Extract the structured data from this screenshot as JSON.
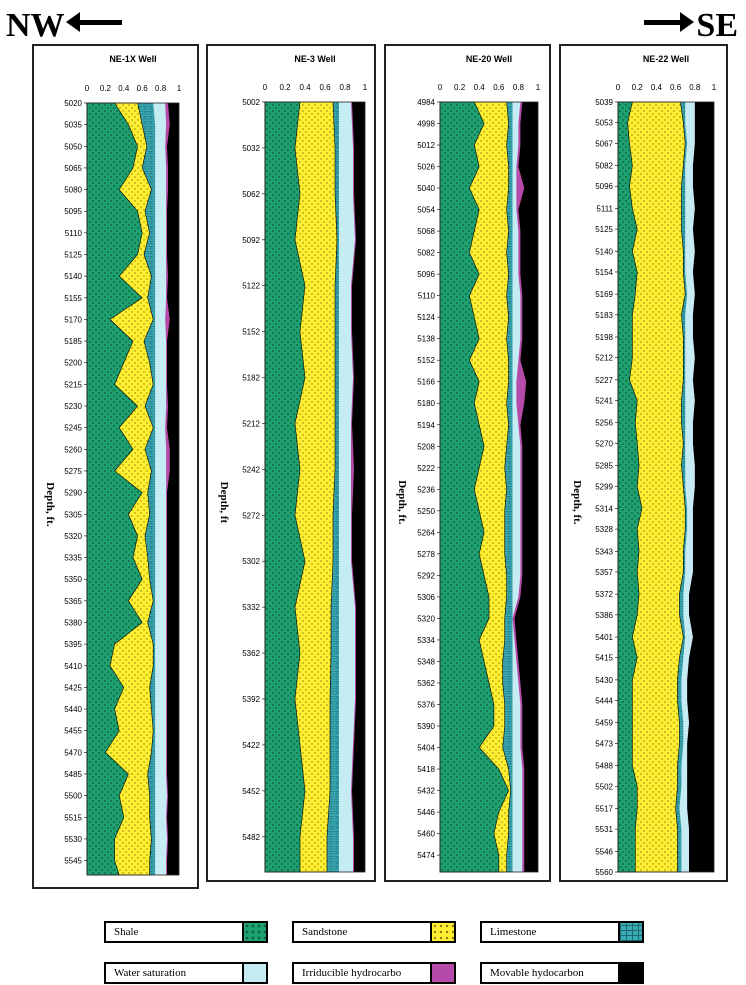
{
  "direction": {
    "left": "NW",
    "right": "SE"
  },
  "legend": [
    {
      "label": "Shale",
      "color": "#1fa070"
    },
    {
      "label": "Sandstone",
      "color": "#ffef33"
    },
    {
      "label": "Limestone",
      "color": "#3aaab5"
    },
    {
      "label": "Water saturation",
      "color": "#c5ebf3"
    },
    {
      "label": "Irriducible hydrocarbo",
      "color": "#b54aa8"
    },
    {
      "label": "Movable hydocarbon",
      "color": "#000000"
    }
  ],
  "chart_data": [
    {
      "type": "area",
      "title": "NE-1X Well",
      "ylabel": "Depth, ft.",
      "xlim": [
        0,
        1
      ],
      "x_ticks": [
        "0",
        "0.2",
        "0.4",
        "0.6",
        "0.8",
        "1"
      ],
      "depth_ticks": [
        "5020",
        "5035",
        "5050",
        "5065",
        "5080",
        "5095",
        "5110",
        "5125",
        "5140",
        "5155",
        "5170",
        "5185",
        "5200",
        "5215",
        "5230",
        "5245",
        "5260",
        "5275",
        "5290",
        "5305",
        "5320",
        "5335",
        "5350",
        "5365",
        "5380",
        "5395",
        "5410",
        "5425",
        "5440",
        "5455",
        "5470",
        "5485",
        "5500",
        "5515",
        "5530",
        "5545"
      ],
      "ylim": [
        5020,
        5555
      ],
      "profile": {
        "depth": [
          5020,
          5035,
          5050,
          5065,
          5080,
          5095,
          5110,
          5125,
          5140,
          5155,
          5170,
          5185,
          5200,
          5215,
          5230,
          5245,
          5260,
          5275,
          5290,
          5305,
          5320,
          5335,
          5350,
          5365,
          5380,
          5395,
          5410,
          5425,
          5440,
          5455,
          5470,
          5485,
          5500,
          5515,
          5530,
          5545,
          5555
        ],
        "shale": [
          0.3,
          0.45,
          0.55,
          0.5,
          0.35,
          0.55,
          0.6,
          0.55,
          0.35,
          0.6,
          0.25,
          0.5,
          0.4,
          0.3,
          0.55,
          0.35,
          0.5,
          0.3,
          0.6,
          0.45,
          0.55,
          0.5,
          0.6,
          0.45,
          0.6,
          0.3,
          0.25,
          0.4,
          0.3,
          0.35,
          0.2,
          0.45,
          0.35,
          0.4,
          0.3,
          0.3,
          0.35
        ],
        "sandstone": [
          0.55,
          0.6,
          0.65,
          0.6,
          0.7,
          0.63,
          0.68,
          0.62,
          0.7,
          0.66,
          0.72,
          0.62,
          0.68,
          0.72,
          0.63,
          0.72,
          0.63,
          0.7,
          0.66,
          0.68,
          0.63,
          0.66,
          0.68,
          0.72,
          0.66,
          0.72,
          0.72,
          0.68,
          0.7,
          0.72,
          0.7,
          0.66,
          0.68,
          0.68,
          0.7,
          0.68,
          0.68
        ],
        "limestone": [
          0.72,
          0.74,
          0.74,
          0.74,
          0.74,
          0.74,
          0.74,
          0.74,
          0.74,
          0.74,
          0.74,
          0.74,
          0.74,
          0.74,
          0.74,
          0.74,
          0.74,
          0.74,
          0.74,
          0.74,
          0.74,
          0.74,
          0.74,
          0.74,
          0.74,
          0.74,
          0.74,
          0.74,
          0.74,
          0.74,
          0.74,
          0.74,
          0.74,
          0.74,
          0.74,
          0.74,
          0.74
        ],
        "water": [
          0.85,
          0.86,
          0.85,
          0.86,
          0.86,
          0.86,
          0.86,
          0.86,
          0.86,
          0.86,
          0.85,
          0.86,
          0.86,
          0.86,
          0.86,
          0.85,
          0.86,
          0.86,
          0.86,
          0.86,
          0.86,
          0.86,
          0.86,
          0.86,
          0.86,
          0.86,
          0.86,
          0.86,
          0.86,
          0.86,
          0.86,
          0.86,
          0.87,
          0.86,
          0.87,
          0.86,
          0.86
        ],
        "irreducible": [
          0.88,
          0.9,
          0.87,
          0.88,
          0.88,
          0.87,
          0.87,
          0.87,
          0.88,
          0.87,
          0.9,
          0.87,
          0.87,
          0.87,
          0.88,
          0.87,
          0.9,
          0.9,
          0.87,
          0.87,
          0.87,
          0.87,
          0.87,
          0.87,
          0.87,
          0.87,
          0.87,
          0.87,
          0.87,
          0.87,
          0.87,
          0.87,
          0.88,
          0.87,
          0.88,
          0.87,
          0.87
        ]
      }
    },
    {
      "type": "area",
      "title": "NE-3 Well",
      "ylabel": "Depth, ft",
      "xlim": [
        0,
        1
      ],
      "x_ticks": [
        "0",
        "0.2",
        "0.4",
        "0.6",
        "0.8",
        "1"
      ],
      "depth_ticks": [
        "5002",
        "5032",
        "5062",
        "5092",
        "5122",
        "5152",
        "5182",
        "5212",
        "5242",
        "5272",
        "5302",
        "5332",
        "5362",
        "5392",
        "5422",
        "5452",
        "5482"
      ],
      "ylim": [
        5002,
        5505
      ],
      "profile": {
        "depth": [
          5002,
          5032,
          5062,
          5092,
          5122,
          5152,
          5182,
          5212,
          5242,
          5272,
          5302,
          5332,
          5362,
          5392,
          5422,
          5452,
          5482,
          5505
        ],
        "shale": [
          0.35,
          0.3,
          0.35,
          0.3,
          0.4,
          0.35,
          0.4,
          0.3,
          0.35,
          0.3,
          0.4,
          0.3,
          0.35,
          0.3,
          0.35,
          0.4,
          0.35,
          0.35
        ],
        "sandstone": [
          0.68,
          0.7,
          0.7,
          0.72,
          0.7,
          0.7,
          0.7,
          0.7,
          0.7,
          0.68,
          0.68,
          0.66,
          0.66,
          0.65,
          0.65,
          0.65,
          0.62,
          0.62
        ],
        "limestone": [
          0.74,
          0.74,
          0.74,
          0.74,
          0.74,
          0.74,
          0.74,
          0.74,
          0.74,
          0.74,
          0.74,
          0.74,
          0.74,
          0.74,
          0.74,
          0.74,
          0.74,
          0.74
        ],
        "water": [
          0.86,
          0.88,
          0.88,
          0.9,
          0.86,
          0.86,
          0.88,
          0.86,
          0.86,
          0.86,
          0.86,
          0.9,
          0.9,
          0.9,
          0.88,
          0.86,
          0.88,
          0.88
        ],
        "irreducible": [
          0.87,
          0.89,
          0.89,
          0.91,
          0.87,
          0.87,
          0.89,
          0.87,
          0.89,
          0.87,
          0.87,
          0.91,
          0.91,
          0.91,
          0.89,
          0.87,
          0.89,
          0.89
        ]
      }
    },
    {
      "type": "area",
      "title": "NE-20 Well",
      "ylabel": "Depth, ft.",
      "xlim": [
        0,
        1
      ],
      "x_ticks": [
        "0",
        "0.2",
        "0.4",
        "0.6",
        "0.8",
        "1"
      ],
      "depth_ticks": [
        "4984",
        "4998",
        "5012",
        "5026",
        "5040",
        "5054",
        "5068",
        "5082",
        "5096",
        "5110",
        "5124",
        "5138",
        "5152",
        "5166",
        "5180",
        "5194",
        "5208",
        "5222",
        "5236",
        "5250",
        "5264",
        "5278",
        "5292",
        "5306",
        "5320",
        "5334",
        "5348",
        "5362",
        "5376",
        "5390",
        "5404",
        "5418",
        "5432",
        "5446",
        "5460",
        "5474"
      ],
      "ylim": [
        4984,
        5485
      ],
      "profile": {
        "depth": [
          4984,
          4998,
          5012,
          5026,
          5040,
          5054,
          5068,
          5082,
          5096,
          5110,
          5124,
          5138,
          5152,
          5166,
          5180,
          5194,
          5208,
          5222,
          5236,
          5250,
          5264,
          5278,
          5292,
          5306,
          5320,
          5334,
          5348,
          5362,
          5376,
          5390,
          5404,
          5418,
          5432,
          5446,
          5460,
          5474,
          5485
        ],
        "shale": [
          0.35,
          0.45,
          0.35,
          0.4,
          0.3,
          0.4,
          0.35,
          0.3,
          0.4,
          0.3,
          0.35,
          0.4,
          0.3,
          0.4,
          0.35,
          0.4,
          0.45,
          0.4,
          0.35,
          0.4,
          0.45,
          0.4,
          0.45,
          0.5,
          0.5,
          0.4,
          0.45,
          0.5,
          0.55,
          0.55,
          0.4,
          0.6,
          0.7,
          0.6,
          0.55,
          0.6,
          0.6
        ],
        "sandstone": [
          0.68,
          0.7,
          0.68,
          0.7,
          0.7,
          0.68,
          0.7,
          0.68,
          0.7,
          0.68,
          0.7,
          0.68,
          0.7,
          0.7,
          0.68,
          0.7,
          0.68,
          0.66,
          0.68,
          0.66,
          0.66,
          0.66,
          0.68,
          0.68,
          0.66,
          0.66,
          0.64,
          0.64,
          0.66,
          0.66,
          0.64,
          0.7,
          0.72,
          0.7,
          0.7,
          0.68,
          0.68
        ],
        "limestone": [
          0.74,
          0.74,
          0.74,
          0.74,
          0.74,
          0.74,
          0.74,
          0.74,
          0.74,
          0.74,
          0.74,
          0.74,
          0.74,
          0.74,
          0.74,
          0.74,
          0.74,
          0.74,
          0.74,
          0.74,
          0.74,
          0.74,
          0.74,
          0.74,
          0.74,
          0.74,
          0.74,
          0.74,
          0.74,
          0.74,
          0.74,
          0.74,
          0.74,
          0.74,
          0.74,
          0.74,
          0.74
        ],
        "water": [
          0.82,
          0.8,
          0.8,
          0.78,
          0.78,
          0.78,
          0.8,
          0.8,
          0.8,
          0.82,
          0.82,
          0.82,
          0.8,
          0.78,
          0.78,
          0.8,
          0.82,
          0.82,
          0.82,
          0.82,
          0.82,
          0.82,
          0.82,
          0.8,
          0.74,
          0.76,
          0.78,
          0.8,
          0.82,
          0.82,
          0.82,
          0.84,
          0.84,
          0.84,
          0.84,
          0.84,
          0.84
        ],
        "irreducible": [
          0.84,
          0.82,
          0.82,
          0.8,
          0.86,
          0.8,
          0.82,
          0.82,
          0.82,
          0.84,
          0.84,
          0.84,
          0.82,
          0.88,
          0.86,
          0.82,
          0.84,
          0.84,
          0.84,
          0.84,
          0.84,
          0.84,
          0.84,
          0.82,
          0.76,
          0.78,
          0.8,
          0.82,
          0.84,
          0.84,
          0.84,
          0.86,
          0.86,
          0.86,
          0.86,
          0.86,
          0.86
        ]
      }
    },
    {
      "type": "area",
      "title": "NE-22 Well",
      "ylabel": "Depth, ft.",
      "xlim": [
        0,
        1
      ],
      "x_ticks": [
        "0",
        "0.2",
        "0.4",
        "0.6",
        "0.8",
        "1"
      ],
      "depth_ticks": [
        "5039",
        "5053",
        "5067",
        "5082",
        "5096",
        "5111",
        "5125",
        "5140",
        "5154",
        "5169",
        "5183",
        "5198",
        "5212",
        "5227",
        "5241",
        "5256",
        "5270",
        "5285",
        "5299",
        "5314",
        "5328",
        "5343",
        "5357",
        "5372",
        "5386",
        "5401",
        "5415",
        "5430",
        "5444",
        "5459",
        "5473",
        "5488",
        "5502",
        "5517",
        "5531",
        "5546",
        "5560"
      ],
      "ylim": [
        5039,
        5560
      ],
      "profile": {
        "depth": [
          5039,
          5053,
          5067,
          5082,
          5096,
          5111,
          5125,
          5140,
          5154,
          5169,
          5183,
          5198,
          5212,
          5227,
          5241,
          5256,
          5270,
          5285,
          5299,
          5314,
          5328,
          5343,
          5357,
          5372,
          5386,
          5401,
          5415,
          5430,
          5444,
          5459,
          5473,
          5488,
          5502,
          5517,
          5531,
          5546,
          5560
        ],
        "shale": [
          0.15,
          0.1,
          0.12,
          0.15,
          0.12,
          0.15,
          0.2,
          0.15,
          0.2,
          0.18,
          0.15,
          0.15,
          0.15,
          0.12,
          0.2,
          0.18,
          0.2,
          0.22,
          0.2,
          0.25,
          0.2,
          0.22,
          0.2,
          0.22,
          0.2,
          0.15,
          0.2,
          0.15,
          0.15,
          0.15,
          0.15,
          0.15,
          0.2,
          0.2,
          0.18,
          0.18,
          0.18
        ],
        "sandstone": [
          0.65,
          0.68,
          0.7,
          0.68,
          0.66,
          0.66,
          0.66,
          0.68,
          0.68,
          0.7,
          0.66,
          0.68,
          0.68,
          0.68,
          0.66,
          0.66,
          0.68,
          0.66,
          0.68,
          0.7,
          0.7,
          0.68,
          0.68,
          0.64,
          0.64,
          0.68,
          0.64,
          0.62,
          0.62,
          0.64,
          0.64,
          0.62,
          0.62,
          0.6,
          0.62,
          0.62,
          0.62
        ],
        "limestone": [
          0.7,
          0.7,
          0.72,
          0.7,
          0.7,
          0.7,
          0.7,
          0.7,
          0.7,
          0.72,
          0.7,
          0.7,
          0.7,
          0.7,
          0.7,
          0.7,
          0.7,
          0.7,
          0.7,
          0.72,
          0.72,
          0.7,
          0.7,
          0.68,
          0.68,
          0.7,
          0.68,
          0.66,
          0.66,
          0.68,
          0.68,
          0.66,
          0.66,
          0.64,
          0.66,
          0.66,
          0.66
        ],
        "water": [
          0.8,
          0.8,
          0.8,
          0.78,
          0.78,
          0.8,
          0.78,
          0.8,
          0.78,
          0.8,
          0.78,
          0.78,
          0.8,
          0.78,
          0.8,
          0.78,
          0.78,
          0.8,
          0.8,
          0.78,
          0.78,
          0.78,
          0.78,
          0.74,
          0.74,
          0.78,
          0.74,
          0.72,
          0.72,
          0.74,
          0.72,
          0.72,
          0.72,
          0.72,
          0.74,
          0.74,
          0.74
        ],
        "irreducible": [
          0.8,
          0.8,
          0.8,
          0.78,
          0.78,
          0.8,
          0.78,
          0.8,
          0.78,
          0.8,
          0.78,
          0.78,
          0.8,
          0.78,
          0.8,
          0.78,
          0.78,
          0.8,
          0.8,
          0.78,
          0.78,
          0.78,
          0.78,
          0.74,
          0.74,
          0.78,
          0.74,
          0.72,
          0.72,
          0.74,
          0.72,
          0.72,
          0.72,
          0.72,
          0.74,
          0.74,
          0.74
        ]
      }
    }
  ]
}
